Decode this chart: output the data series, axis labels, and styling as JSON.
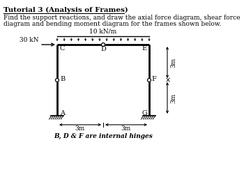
{
  "title": "Tutorial 3 (Analysis of Frames)",
  "subtitle_line1": "Find the support reactions, and draw the axial force diagram, shear force",
  "subtitle_line2": "diagram and bending moment diagram for the frames shown below.",
  "note": "B, D & F are internal hinges",
  "load_label": "10 kN/m",
  "force_label": "30 kN",
  "dim_label_h1": "3m",
  "dim_label_h2": "3m",
  "dim_label_v1": "3m",
  "dim_label_v2": "3m",
  "frame_color": "#000000",
  "bg_color": "#ffffff",
  "ox": 82,
  "oy": 88,
  "sx": 22,
  "sy": 17
}
